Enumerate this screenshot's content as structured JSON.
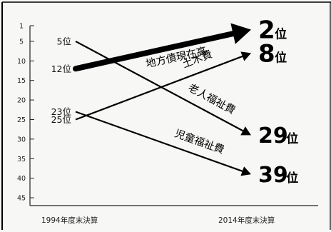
{
  "chart_data": {
    "type": "line",
    "y_axis": {
      "inverted": true,
      "range": [
        1,
        47
      ],
      "ticks": [
        "1",
        "5",
        "10",
        "15",
        "20",
        "25",
        "30",
        "35",
        "40",
        "45"
      ],
      "tick_values": [
        1,
        5,
        10,
        15,
        20,
        25,
        30,
        35,
        40,
        45
      ]
    },
    "x_labels": [
      "1994年度末決算",
      "2014年度末決算"
    ],
    "series": [
      {
        "name": "地方債現在高",
        "start_rank": 12,
        "end_rank": 2,
        "start_label": "12位",
        "end_number": "2",
        "end_unit": "位",
        "color": "#000000",
        "emphasis": "thick"
      },
      {
        "name": "土木費",
        "start_rank": 25,
        "end_rank": 8,
        "start_label": "25位",
        "end_number": "8",
        "end_unit": "位",
        "color": "#000000",
        "emphasis": "normal"
      },
      {
        "name": "老人福祉費",
        "start_rank": 5,
        "end_rank": 29,
        "start_label": "5位",
        "end_number": "29",
        "end_unit": "位",
        "color": "#000000",
        "emphasis": "normal"
      },
      {
        "name": "児童福祉費",
        "start_rank": 23,
        "end_rank": 39,
        "start_label": "23位",
        "end_number": "39",
        "end_unit": "位",
        "color": "#000000",
        "emphasis": "normal"
      }
    ],
    "grid": false,
    "legend": "none"
  }
}
